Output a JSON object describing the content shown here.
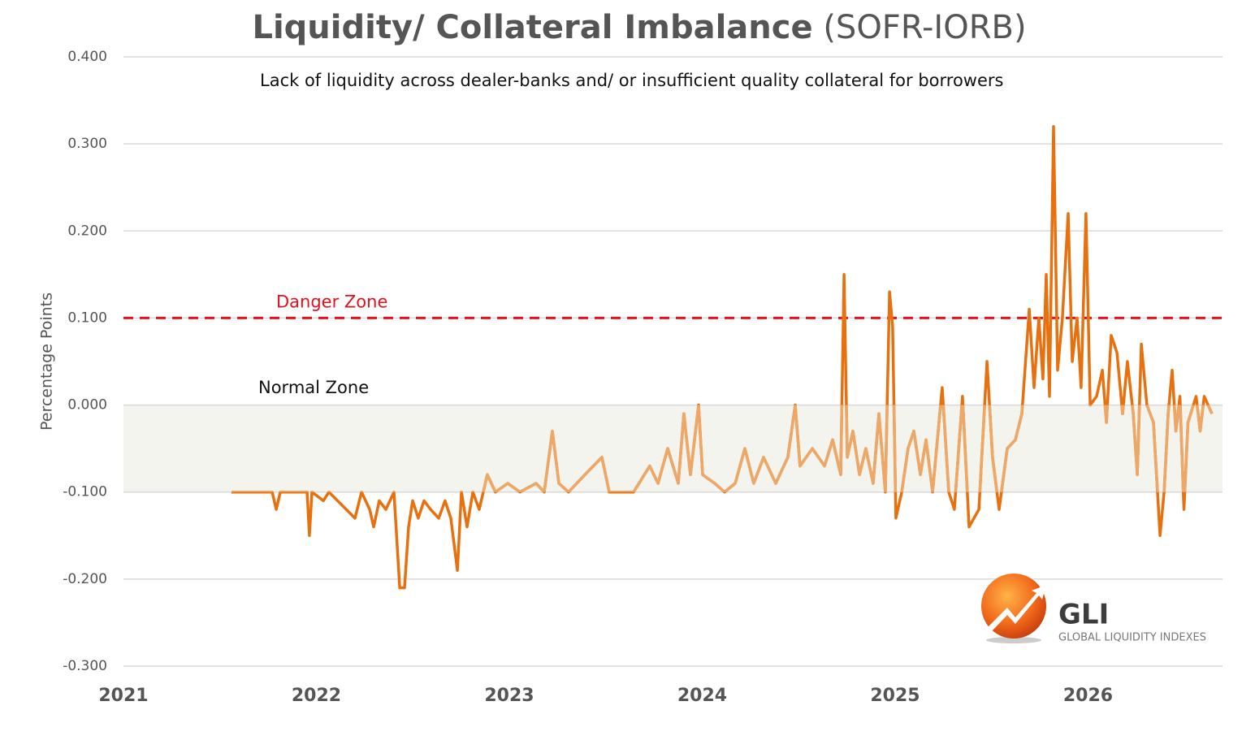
{
  "chart_data": {
    "type": "line",
    "title": "Liquidity/ Collateral Imbalance",
    "title_suffix": "(SOFR-IORB)",
    "subtitle": "Lack of liquidity across dealer-banks and/ or insufficient quality collateral for borrowers",
    "y_label": "Percentage Points",
    "xlim": [
      2021,
      2026.7
    ],
    "xticks": [
      2021,
      2022,
      2023,
      2024,
      2025,
      2026
    ],
    "ylim": [
      -0.3,
      0.4
    ],
    "yticks": [
      {
        "value": -0.3,
        "label": "-0.300"
      },
      {
        "value": -0.2,
        "label": "-0.200"
      },
      {
        "value": -0.1,
        "label": "-0.100"
      },
      {
        "value": 0,
        "label": "0.000"
      },
      {
        "value": 0.1,
        "label": "0.100"
      },
      {
        "value": 0.2,
        "label": "0.200"
      },
      {
        "value": 0.3,
        "label": "0.300"
      },
      {
        "value": 0.4,
        "label": "0.400"
      }
    ],
    "grid": true,
    "danger_zone": {
      "text": "Danger Zone",
      "value": 0.1,
      "color": "#e8101a"
    },
    "normal_zone": {
      "text": "Normal Zone",
      "range": [
        -0.1,
        0
      ],
      "color": "#f3f4ee"
    },
    "series": [
      {
        "name": "SOFR-IORB",
        "color": "#e8710f",
        "zone_color": "#eda767",
        "x": [
          2021.56,
          2021.771,
          2021.792,
          2021.813,
          2021.952,
          2021.964,
          2021.977,
          2022.036,
          2022.065,
          2022.2,
          2022.234,
          2022.276,
          2022.297,
          2022.326,
          2022.36,
          2022.402,
          2022.432,
          2022.457,
          2022.478,
          2022.499,
          2022.528,
          2022.558,
          2022.592,
          2022.634,
          2022.667,
          2022.697,
          2022.731,
          2022.752,
          2022.781,
          2022.811,
          2022.844,
          2022.886,
          2022.928,
          2022.992,
          2023.055,
          2023.139,
          2023.181,
          2023.223,
          2023.257,
          2023.307,
          2023.392,
          2023.48,
          2023.518,
          2023.644,
          2023.728,
          2023.771,
          2023.821,
          2023.876,
          2023.905,
          2023.939,
          2023.981,
          2024.002,
          2024.065,
          2024.116,
          2024.171,
          2024.221,
          2024.267,
          2024.318,
          2024.381,
          2024.444,
          2024.482,
          2024.507,
          2024.571,
          2024.634,
          2024.676,
          2024.718,
          2024.735,
          2024.752,
          2024.781,
          2024.815,
          2024.848,
          2024.886,
          2024.916,
          2024.949,
          2024.971,
          2024.987,
          2025.004,
          2025.034,
          2025.067,
          2025.097,
          2025.131,
          2025.16,
          2025.194,
          2025.244,
          2025.278,
          2025.307,
          2025.349,
          2025.383,
          2025.434,
          2025.476,
          2025.505,
          2025.539,
          2025.581,
          2025.623,
          2025.657,
          2025.695,
          2025.72,
          2025.745,
          2025.766,
          2025.783,
          2025.8,
          2025.821,
          2025.842,
          2025.867,
          2025.897,
          2025.918,
          2025.943,
          2025.964,
          2025.989,
          2026.011,
          2026.044,
          2026.074,
          2026.095,
          2026.12,
          2026.15,
          2026.179,
          2026.204,
          2026.234,
          2026.255,
          2026.276,
          2026.305,
          2026.339,
          2026.373,
          2026.394,
          2026.415,
          2026.436,
          2026.455,
          2026.476,
          2026.497,
          2026.518,
          2026.56,
          2026.581,
          2026.602,
          2026.642
        ],
        "values": [
          -0.1,
          -0.1,
          -0.12,
          -0.1,
          -0.1,
          -0.15,
          -0.1,
          -0.11,
          -0.1,
          -0.13,
          -0.1,
          -0.12,
          -0.14,
          -0.11,
          -0.12,
          -0.1,
          -0.21,
          -0.21,
          -0.14,
          -0.11,
          -0.13,
          -0.11,
          -0.12,
          -0.13,
          -0.11,
          -0.13,
          -0.19,
          -0.1,
          -0.14,
          -0.1,
          -0.12,
          -0.08,
          -0.1,
          -0.09,
          -0.1,
          -0.09,
          -0.1,
          -0.03,
          -0.09,
          -0.1,
          -0.08,
          -0.06,
          -0.1,
          -0.1,
          -0.07,
          -0.09,
          -0.05,
          -0.09,
          -0.01,
          -0.08,
          0,
          -0.08,
          -0.09,
          -0.1,
          -0.09,
          -0.05,
          -0.09,
          -0.06,
          -0.09,
          -0.06,
          0,
          -0.07,
          -0.05,
          -0.07,
          -0.04,
          -0.08,
          0.15,
          -0.06,
          -0.03,
          -0.08,
          -0.05,
          -0.09,
          -0.01,
          -0.1,
          0.13,
          0.09,
          -0.13,
          -0.1,
          -0.05,
          -0.03,
          -0.08,
          -0.04,
          -0.1,
          0.02,
          -0.1,
          -0.12,
          0.01,
          -0.14,
          -0.12,
          0.05,
          -0.06,
          -0.12,
          -0.05,
          -0.04,
          -0.01,
          0.11,
          0.02,
          0.1,
          0.03,
          0.15,
          0.01,
          0.32,
          0.04,
          0.1,
          0.22,
          0.05,
          0.1,
          0.02,
          0.22,
          0,
          0.01,
          0.04,
          -0.02,
          0.08,
          0.06,
          -0.01,
          0.05,
          -0.01,
          -0.08,
          0.07,
          0,
          -0.02,
          -0.15,
          -0.1,
          -0.01,
          0.04,
          -0.03,
          0.01,
          -0.12,
          -0.02,
          0.01,
          -0.03,
          0.01,
          -0.01
        ]
      }
    ],
    "logo": {
      "text": "GLI",
      "tagline": "GLOBAL LIQUIDITY INDEXES"
    }
  }
}
